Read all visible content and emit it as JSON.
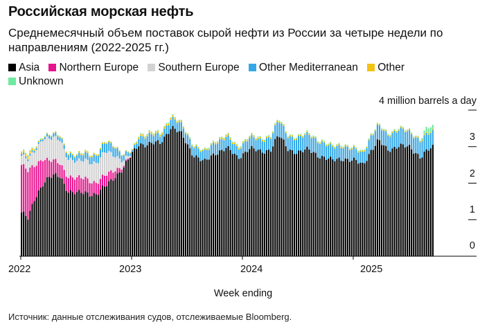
{
  "title": "Российская морская нефть",
  "subtitle": "Среднемесячный объем поставок сырой нефти из России за четыре недели по направлениям (2022-2025 гг.)",
  "source": "Источник: данные отслеживания судов, отслеживаемые Bloomberg.",
  "legend": [
    {
      "name": "Asia",
      "color": "#000000"
    },
    {
      "name": "Northern Europe",
      "color": "#e6148e"
    },
    {
      "name": "Southern Europe",
      "color": "#d2d2d2"
    },
    {
      "name": "Other Mediterranean",
      "color": "#34a8e6"
    },
    {
      "name": "Other",
      "color": "#f2c313"
    },
    {
      "name": "Unknown",
      "color": "#6fe8a0"
    }
  ],
  "chart_data": {
    "type": "bar",
    "stacked": true,
    "title": "Российская морская нефть",
    "ylabel": "4 million barrels a day",
    "xlabel": "Week ending",
    "ylim": [
      0,
      4
    ],
    "yticks": [
      "0",
      "1",
      "2",
      "3"
    ],
    "xticks": [
      "2022",
      "2023",
      "2024",
      "2025"
    ],
    "series_order": [
      "Asia",
      "Northern Europe",
      "Southern Europe",
      "Other Mediterranean",
      "Other",
      "Unknown"
    ],
    "keyframes": [
      {
        "year": 2022.0,
        "Asia": 1.2,
        "Northern Europe": 1.3,
        "Southern Europe": 0.25,
        "Other Mediterranean": 0.05,
        "Other": 0.05,
        "Unknown": 0.02
      },
      {
        "year": 2022.06,
        "Asia": 1.0,
        "Northern Europe": 1.3,
        "Southern Europe": 0.3,
        "Other Mediterranean": 0.05,
        "Other": 0.1,
        "Unknown": 0.02
      },
      {
        "year": 2022.12,
        "Asia": 1.6,
        "Northern Europe": 0.9,
        "Southern Europe": 0.4,
        "Other Mediterranean": 0.05,
        "Other": 0.03,
        "Unknown": 0.02
      },
      {
        "year": 2022.19,
        "Asia": 2.0,
        "Northern Europe": 0.7,
        "Southern Europe": 0.55,
        "Other Mediterranean": 0.05,
        "Other": 0.02,
        "Unknown": 0.01
      },
      {
        "year": 2022.25,
        "Asia": 2.15,
        "Northern Europe": 0.45,
        "Southern Europe": 0.6,
        "Other Mediterranean": 0.08,
        "Other": 0.02,
        "Unknown": 0.01
      },
      {
        "year": 2022.35,
        "Asia": 2.2,
        "Northern Europe": 0.35,
        "Southern Europe": 0.65,
        "Other Mediterranean": 0.1,
        "Other": 0.03,
        "Unknown": 0.01
      },
      {
        "year": 2022.42,
        "Asia": 1.8,
        "Northern Europe": 0.4,
        "Southern Europe": 0.5,
        "Other Mediterranean": 0.12,
        "Other": 0.03,
        "Unknown": 0.01
      },
      {
        "year": 2022.5,
        "Asia": 1.7,
        "Northern Europe": 0.4,
        "Southern Europe": 0.45,
        "Other Mediterranean": 0.15,
        "Other": 0.03,
        "Unknown": 0.01
      },
      {
        "year": 2022.58,
        "Asia": 1.75,
        "Northern Europe": 0.4,
        "Southern Europe": 0.5,
        "Other Mediterranean": 0.18,
        "Other": 0.05,
        "Unknown": 0.01
      },
      {
        "year": 2022.68,
        "Asia": 1.7,
        "Northern Europe": 0.3,
        "Southern Europe": 0.55,
        "Other Mediterranean": 0.2,
        "Other": 0.03,
        "Unknown": 0.01
      },
      {
        "year": 2022.76,
        "Asia": 1.9,
        "Northern Europe": 0.3,
        "Southern Europe": 0.65,
        "Other Mediterranean": 0.25,
        "Other": 0.03,
        "Unknown": 0.01
      },
      {
        "year": 2022.84,
        "Asia": 2.2,
        "Northern Europe": 0.2,
        "Southern Europe": 0.4,
        "Other Mediterranean": 0.25,
        "Other": 0.03,
        "Unknown": 0.01
      },
      {
        "year": 2022.92,
        "Asia": 2.4,
        "Northern Europe": 0.05,
        "Southern Europe": 0.15,
        "Other Mediterranean": 0.15,
        "Other": 0.02,
        "Unknown": 0.01
      },
      {
        "year": 2023.0,
        "Asia": 2.8,
        "Northern Europe": 0.0,
        "Southern Europe": 0.0,
        "Other Mediterranean": 0.05,
        "Other": 0.02,
        "Unknown": 0.01
      },
      {
        "year": 2023.06,
        "Asia": 3.1,
        "Northern Europe": 0.0,
        "Southern Europe": 0.0,
        "Other Mediterranean": 0.2,
        "Other": 0.05,
        "Unknown": 0.02
      },
      {
        "year": 2023.15,
        "Asia": 3.05,
        "Northern Europe": 0.0,
        "Southern Europe": 0.0,
        "Other Mediterranean": 0.25,
        "Other": 0.05,
        "Unknown": 0.02
      },
      {
        "year": 2023.25,
        "Asia": 3.1,
        "Northern Europe": 0.0,
        "Southern Europe": 0.0,
        "Other Mediterranean": 0.2,
        "Other": 0.05,
        "Unknown": 0.02
      },
      {
        "year": 2023.35,
        "Asia": 3.55,
        "Northern Europe": 0.0,
        "Southern Europe": 0.0,
        "Other Mediterranean": 0.25,
        "Other": 0.05,
        "Unknown": 0.02
      },
      {
        "year": 2023.45,
        "Asia": 3.3,
        "Northern Europe": 0.0,
        "Southern Europe": 0.0,
        "Other Mediterranean": 0.25,
        "Other": 0.04,
        "Unknown": 0.02
      },
      {
        "year": 2023.55,
        "Asia": 2.8,
        "Northern Europe": 0.0,
        "Southern Europe": 0.0,
        "Other Mediterranean": 0.25,
        "Other": 0.03,
        "Unknown": 0.02
      },
      {
        "year": 2023.65,
        "Asia": 2.55,
        "Northern Europe": 0.0,
        "Southern Europe": 0.0,
        "Other Mediterranean": 0.25,
        "Other": 0.03,
        "Unknown": 0.02
      },
      {
        "year": 2023.75,
        "Asia": 2.85,
        "Northern Europe": 0.0,
        "Southern Europe": 0.0,
        "Other Mediterranean": 0.3,
        "Other": 0.04,
        "Unknown": 0.02
      },
      {
        "year": 2023.85,
        "Asia": 2.95,
        "Northern Europe": 0.0,
        "Southern Europe": 0.0,
        "Other Mediterranean": 0.3,
        "Other": 0.05,
        "Unknown": 0.02
      },
      {
        "year": 2023.95,
        "Asia": 2.7,
        "Northern Europe": 0.0,
        "Southern Europe": 0.0,
        "Other Mediterranean": 0.25,
        "Other": 0.04,
        "Unknown": 0.02
      },
      {
        "year": 2024.05,
        "Asia": 2.95,
        "Northern Europe": 0.0,
        "Southern Europe": 0.0,
        "Other Mediterranean": 0.3,
        "Other": 0.04,
        "Unknown": 0.02
      },
      {
        "year": 2024.15,
        "Asia": 2.85,
        "Northern Europe": 0.0,
        "Southern Europe": 0.0,
        "Other Mediterranean": 0.3,
        "Other": 0.04,
        "Unknown": 0.02
      },
      {
        "year": 2024.25,
        "Asia": 2.95,
        "Northern Europe": 0.0,
        "Southern Europe": 0.0,
        "Other Mediterranean": 0.35,
        "Other": 0.03,
        "Unknown": 0.02
      },
      {
        "year": 2024.32,
        "Asia": 3.3,
        "Northern Europe": 0.0,
        "Southern Europe": 0.0,
        "Other Mediterranean": 0.4,
        "Other": 0.04,
        "Unknown": 0.02
      },
      {
        "year": 2024.4,
        "Asia": 2.95,
        "Northern Europe": 0.0,
        "Southern Europe": 0.0,
        "Other Mediterranean": 0.35,
        "Other": 0.03,
        "Unknown": 0.02
      },
      {
        "year": 2024.5,
        "Asia": 2.85,
        "Northern Europe": 0.0,
        "Southern Europe": 0.0,
        "Other Mediterranean": 0.4,
        "Other": 0.03,
        "Unknown": 0.02
      },
      {
        "year": 2024.6,
        "Asia": 2.9,
        "Northern Europe": 0.0,
        "Southern Europe": 0.0,
        "Other Mediterranean": 0.4,
        "Other": 0.03,
        "Unknown": 0.02
      },
      {
        "year": 2024.7,
        "Asia": 2.75,
        "Northern Europe": 0.0,
        "Southern Europe": 0.0,
        "Other Mediterranean": 0.4,
        "Other": 0.03,
        "Unknown": 0.02
      },
      {
        "year": 2024.8,
        "Asia": 2.6,
        "Northern Europe": 0.0,
        "Southern Europe": 0.0,
        "Other Mediterranean": 0.35,
        "Other": 0.03,
        "Unknown": 0.02
      },
      {
        "year": 2024.9,
        "Asia": 2.7,
        "Northern Europe": 0.0,
        "Southern Europe": 0.0,
        "Other Mediterranean": 0.35,
        "Other": 0.03,
        "Unknown": 0.02
      },
      {
        "year": 2025.0,
        "Asia": 2.6,
        "Northern Europe": 0.0,
        "Southern Europe": 0.0,
        "Other Mediterranean": 0.3,
        "Other": 0.03,
        "Unknown": 0.02
      },
      {
        "year": 2025.08,
        "Asia": 2.5,
        "Northern Europe": 0.0,
        "Southern Europe": 0.0,
        "Other Mediterranean": 0.3,
        "Other": 0.03,
        "Unknown": 0.02
      },
      {
        "year": 2025.15,
        "Asia": 2.9,
        "Northern Europe": 0.0,
        "Southern Europe": 0.0,
        "Other Mediterranean": 0.4,
        "Other": 0.03,
        "Unknown": 0.02
      },
      {
        "year": 2025.22,
        "Asia": 3.15,
        "Northern Europe": 0.0,
        "Southern Europe": 0.0,
        "Other Mediterranean": 0.4,
        "Other": 0.03,
        "Unknown": 0.02
      },
      {
        "year": 2025.3,
        "Asia": 2.9,
        "Northern Europe": 0.0,
        "Southern Europe": 0.0,
        "Other Mediterranean": 0.4,
        "Other": 0.03,
        "Unknown": 0.02
      },
      {
        "year": 2025.4,
        "Asia": 3.05,
        "Northern Europe": 0.0,
        "Southern Europe": 0.0,
        "Other Mediterranean": 0.45,
        "Other": 0.03,
        "Unknown": 0.02
      },
      {
        "year": 2025.5,
        "Asia": 2.95,
        "Northern Europe": 0.0,
        "Southern Europe": 0.0,
        "Other Mediterranean": 0.4,
        "Other": 0.03,
        "Unknown": 0.02
      },
      {
        "year": 2025.6,
        "Asia": 2.75,
        "Northern Europe": 0.0,
        "Southern Europe": 0.0,
        "Other Mediterranean": 0.45,
        "Other": 0.03,
        "Unknown": 0.02
      },
      {
        "year": 2025.66,
        "Asia": 2.9,
        "Northern Europe": 0.0,
        "Southern Europe": 0.0,
        "Other Mediterranean": 0.45,
        "Other": 0.03,
        "Unknown": 0.15
      },
      {
        "year": 2025.72,
        "Asia": 2.95,
        "Northern Europe": 0.0,
        "Southern Europe": 0.0,
        "Other Mediterranean": 0.4,
        "Other": 0.03,
        "Unknown": 0.1
      }
    ]
  }
}
